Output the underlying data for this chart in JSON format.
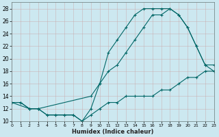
{
  "xlabel": "Humidex (Indice chaleur)",
  "bg_color": "#cce8f0",
  "line_color": "#006666",
  "grid_color": "#aacccc",
  "xlim": [
    0,
    23
  ],
  "ylim": [
    10,
    29
  ],
  "xtick_step": 1,
  "yticks": [
    10,
    12,
    14,
    16,
    18,
    20,
    22,
    24,
    26,
    28
  ],
  "line1_x": [
    0,
    1,
    2,
    3,
    4,
    5,
    6,
    7,
    8,
    9,
    10,
    11,
    12,
    13,
    14,
    15,
    16,
    17,
    18,
    19,
    20,
    21,
    22,
    23
  ],
  "line1_y": [
    13,
    13,
    12,
    12,
    11,
    11,
    11,
    11,
    10,
    11,
    12,
    13,
    13,
    14,
    14,
    14,
    14,
    15,
    15,
    16,
    17,
    17,
    18,
    18
  ],
  "line2_x": [
    0,
    2,
    3,
    9,
    10,
    11,
    12,
    13,
    14,
    15,
    16,
    17,
    18,
    19,
    20,
    21,
    22,
    23
  ],
  "line2_y": [
    13,
    12,
    12,
    14,
    16,
    18,
    19,
    21,
    23,
    25,
    27,
    27,
    28,
    27,
    25,
    22,
    19,
    18
  ],
  "line3_x": [
    0,
    1,
    2,
    3,
    4,
    5,
    6,
    7,
    8,
    9,
    10,
    11,
    12,
    13,
    14,
    15,
    16,
    17,
    18,
    19,
    20,
    21,
    22,
    23
  ],
  "line3_y": [
    13,
    13,
    12,
    12,
    11,
    11,
    11,
    11,
    10,
    12,
    16,
    21,
    23,
    25,
    27,
    28,
    28,
    28,
    28,
    27,
    25,
    22,
    19,
    19
  ]
}
